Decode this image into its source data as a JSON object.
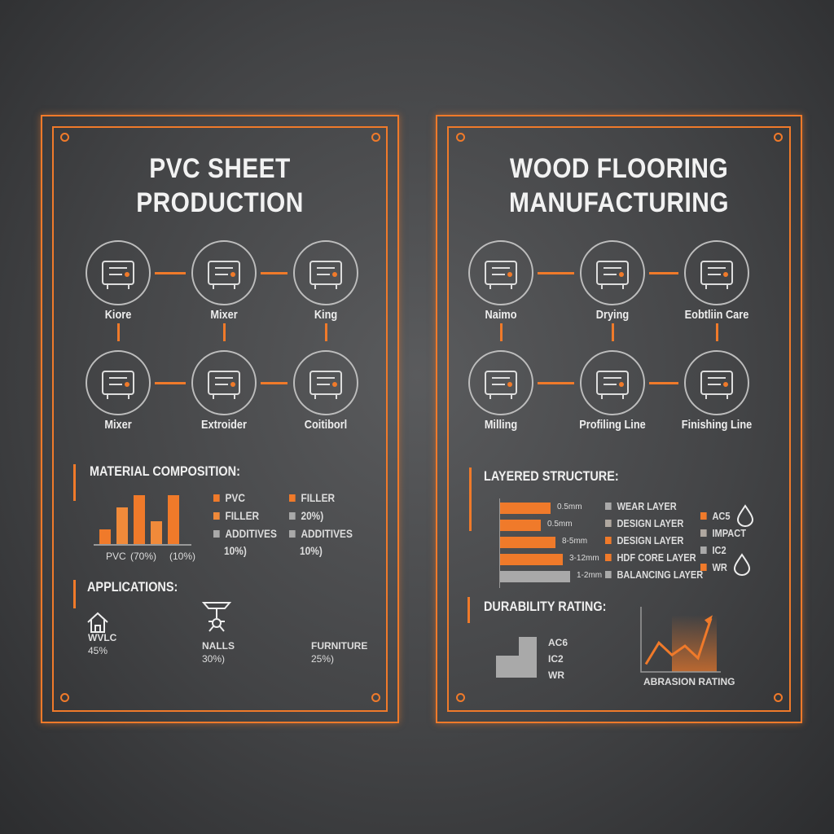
{
  "colors": {
    "accent": "#f07a2a",
    "gray": "#a9a9a9",
    "background": "#464749"
  },
  "left": {
    "title_line1": "PVC SHEET",
    "title_line2": "PRODUCTION",
    "flow": [
      {
        "label": "Kiore",
        "icon": "silo-lightning-icon"
      },
      {
        "label": "Mixer",
        "icon": "mixer-machine-icon"
      },
      {
        "label": "King",
        "icon": "robot-arm-icon"
      },
      {
        "label": "Mixer",
        "icon": "hopper-press-icon"
      },
      {
        "label": "Extroider",
        "icon": "extruder-icon"
      },
      {
        "label": "Coitiborl",
        "icon": "rollers-icon"
      }
    ],
    "composition": {
      "heading": "MATERIAL COMPOSITION:",
      "bars": [
        18,
        45,
        60,
        28,
        60
      ],
      "axis_labels": [
        "PVC",
        "(70%)",
        "(10%)"
      ],
      "legend": [
        {
          "text": "PVC",
          "color": "#f07a2a"
        },
        {
          "text": "FILLER",
          "color": "#f07a2a"
        },
        {
          "text": "FILLER",
          "color": "#f08a3a"
        },
        {
          "text": "20%)",
          "color": "#a9a9a9"
        },
        {
          "text": "ADDITIVES",
          "sub": "10%)",
          "color": "#a9a9a9"
        },
        {
          "text": "ADDITIVES",
          "sub": "10%)",
          "color": "#a9a9a9"
        }
      ]
    },
    "applications": {
      "heading": "APPLICATIONS:",
      "items": [
        {
          "label": "WVLC",
          "value": "45%",
          "percent": 45,
          "icon": "house-icon"
        },
        {
          "label": "NALLS",
          "value": "30%)",
          "percent": 30,
          "icon": "ceiling-fixture-icon"
        },
        {
          "label": "FURNITURE",
          "value": "25%)",
          "percent": 25
        }
      ]
    }
  },
  "right": {
    "title_line1": "WOOD FLOORING",
    "title_line2": "MANUFACTURING",
    "flow": [
      {
        "label": "Naimo",
        "icon": "logs-icon"
      },
      {
        "label": "Drying",
        "icon": "saw-frame-icon"
      },
      {
        "label": "Eobtliin Care",
        "icon": "glue-applicator-icon"
      },
      {
        "label": "Milling",
        "icon": "milling-machine-icon"
      },
      {
        "label": "Profiling Line",
        "icon": "profiling-machine-icon"
      },
      {
        "label": "Finishing Line",
        "icon": "finishing-sprayer-icon"
      }
    ],
    "layers": {
      "heading": "LAYERED STRUCTURE:",
      "bars": [
        {
          "size": "0.5mm",
          "length": 62,
          "color": "#f07a2a"
        },
        {
          "size": "0.5mm",
          "length": 50,
          "color": "#f07a2a"
        },
        {
          "size": "8-5mm",
          "length": 68,
          "color": "#f07a2a"
        },
        {
          "size": "3-12mm",
          "length": 77,
          "color": "#f07a2a"
        },
        {
          "size": "1-2mm",
          "length": 86,
          "color": "#a9a9a9"
        }
      ],
      "legend": [
        {
          "text": "WEAR LAYER",
          "color": "#a9a9a9"
        },
        {
          "text": "DESIGN LAYER",
          "color": "#b0a8a0"
        },
        {
          "text": "DESIGN LAYER",
          "color": "#f07a2a"
        },
        {
          "text": "HDF CORE LAYER",
          "color": "#f07a2a"
        },
        {
          "text": "BALANCING LAYER",
          "color": "#a9a9a9"
        }
      ],
      "ratings": [
        {
          "text": "AC5",
          "color": "#f07a2a"
        },
        {
          "text": "IMPACT",
          "color": "#b0a8a0"
        },
        {
          "text": "IC2",
          "color": "#a9a9a9"
        },
        {
          "text": "WR",
          "color": "#f07a2a"
        }
      ]
    },
    "durability": {
      "heading": "DURABILITY RATING:",
      "labels": [
        "AC6",
        "IC2",
        "WR"
      ],
      "chart_label": "ABRASION RATING",
      "trend": [
        10,
        45,
        25,
        40,
        20,
        85
      ]
    }
  }
}
